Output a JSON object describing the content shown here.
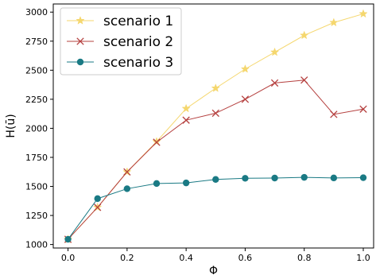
{
  "chart_data": {
    "type": "line",
    "title": "",
    "xlabel": "Φ",
    "ylabel": "H(ū)",
    "xlim": [
      -0.05,
      1.035
    ],
    "ylim": [
      970,
      3070
    ],
    "x": [
      0.0,
      0.1,
      0.2,
      0.3,
      0.4,
      0.5,
      0.6,
      0.7,
      0.8,
      0.9,
      1.0
    ],
    "x_ticks": [
      {
        "value": 0.0,
        "label": "0.0"
      },
      {
        "value": 0.2,
        "label": "0.2"
      },
      {
        "value": 0.4,
        "label": "0.4"
      },
      {
        "value": 0.6,
        "label": "0.6"
      },
      {
        "value": 0.8,
        "label": "0.8"
      },
      {
        "value": 1.0,
        "label": "1.0"
      }
    ],
    "y_ticks": [
      {
        "value": 1000,
        "label": "1000"
      },
      {
        "value": 1250,
        "label": "1250"
      },
      {
        "value": 1500,
        "label": "1500"
      },
      {
        "value": 1750,
        "label": "1750"
      },
      {
        "value": 2000,
        "label": "2000"
      },
      {
        "value": 2250,
        "label": "2250"
      },
      {
        "value": 2500,
        "label": "2500"
      },
      {
        "value": 2750,
        "label": "2750"
      },
      {
        "value": 3000,
        "label": "3000"
      }
    ],
    "grid": false,
    "legend_position": "top-left",
    "series": [
      {
        "name": "scenario 1",
        "marker": "star",
        "color": "#f5d76e",
        "values": [
          1045,
          1320,
          1625,
          1885,
          2170,
          2345,
          2510,
          2655,
          2800,
          2910,
          2985
        ]
      },
      {
        "name": "scenario 2",
        "marker": "x",
        "color": "#b5403f",
        "values": [
          1045,
          1320,
          1625,
          1880,
          2070,
          2130,
          2250,
          2390,
          2415,
          2120,
          2165
        ]
      },
      {
        "name": "scenario 3",
        "marker": "circle",
        "color": "#1a7a84",
        "values": [
          1045,
          1395,
          1480,
          1525,
          1530,
          1560,
          1570,
          1572,
          1578,
          1573,
          1575
        ]
      }
    ]
  }
}
